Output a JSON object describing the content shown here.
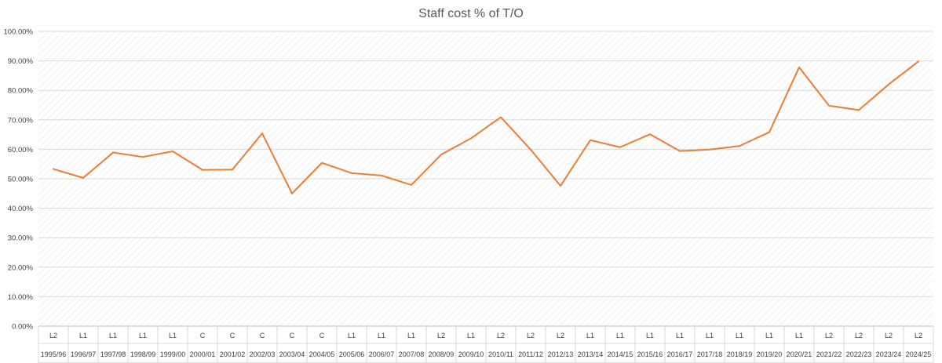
{
  "chart_data": {
    "type": "line",
    "title": "Staff cost % of T/O",
    "categories": [
      "1995/96",
      "1996/97",
      "1997/98",
      "1998/99",
      "1999/00",
      "2000/01",
      "2001/02",
      "2002/03",
      "2003/04",
      "2004/05",
      "2005/06",
      "2006/07",
      "2007/08",
      "2008/09",
      "2009/10",
      "2010/11",
      "2011/12",
      "2012/13",
      "2013/14",
      "2014/15",
      "2015/16",
      "2016/17",
      "2017/18",
      "2018/19",
      "2019/20",
      "2020/21",
      "2021/22",
      "2022/23",
      "2023/24",
      "2024/25"
    ],
    "groups": [
      "L2",
      "L1",
      "L1",
      "L1",
      "L1",
      "C",
      "C",
      "C",
      "C",
      "C",
      "L1",
      "L1",
      "L1",
      "L2",
      "L1",
      "L2",
      "L2",
      "L2",
      "L1",
      "L1",
      "L1",
      "L1",
      "L1",
      "L1",
      "L1",
      "L1",
      "L2",
      "L2",
      "L2",
      "L2"
    ],
    "series": [
      {
        "values": [
          53.3,
          50.3,
          58.9,
          57.4,
          59.3,
          53.0,
          53.1,
          65.4,
          45.0,
          55.4,
          51.9,
          51.1,
          47.9,
          58.2,
          63.7,
          70.9,
          59.9,
          47.6,
          63.1,
          60.7,
          65.1,
          59.4,
          59.9,
          61.1,
          65.8,
          87.8,
          74.8,
          73.3,
          82.0,
          89.8
        ],
        "color": "#ED7D31"
      }
    ],
    "ylim": [
      0,
      100
    ],
    "yticks": [
      "0.00%",
      "10.00%",
      "20.00%",
      "30.00%",
      "40.00%",
      "50.00%",
      "60.00%",
      "70.00%",
      "80.00%",
      "90.00%",
      "100.00%"
    ],
    "xlabel": "",
    "ylabel": "",
    "grid": true,
    "legend": "none"
  }
}
